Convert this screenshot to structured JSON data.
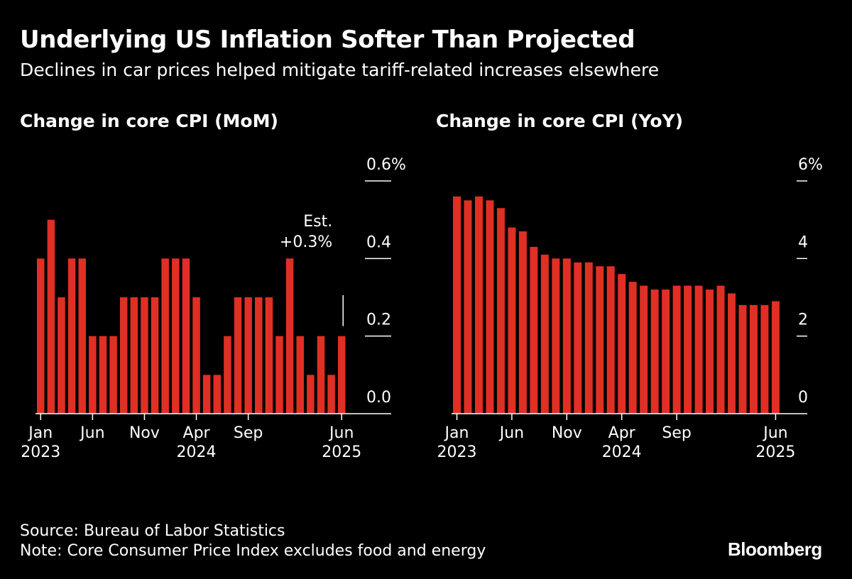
{
  "title": "Underlying US Inflation Softer Than Projected",
  "subtitle": "Declines in car prices helped mitigate tariff-related increases elsewhere",
  "source": "Source: Bureau of Labor Statistics",
  "note": "Note: Core Consumer Price Index excludes food and energy",
  "logo": "Bloomberg",
  "colors": {
    "bar": "#e02f24",
    "background": "#000000",
    "text": "#ffffff"
  },
  "chart_data": [
    {
      "type": "bar",
      "title": "Change in core CPI (MoM)",
      "xlabel": "",
      "ylabel": "",
      "ylim": [
        0,
        0.6
      ],
      "y_ticks": [
        {
          "value": 0.0,
          "label": "0.0"
        },
        {
          "value": 0.2,
          "label": "0.2"
        },
        {
          "value": 0.4,
          "label": "0.4"
        },
        {
          "value": 0.6,
          "label": "0.6%"
        }
      ],
      "x_ticks": [
        {
          "index": 0,
          "label": "Jan",
          "year": "2023"
        },
        {
          "index": 5,
          "label": "Jun",
          "year": ""
        },
        {
          "index": 10,
          "label": "Nov",
          "year": ""
        },
        {
          "index": 15,
          "label": "Apr",
          "year": "2024"
        },
        {
          "index": 20,
          "label": "Sep",
          "year": ""
        },
        {
          "index": 29,
          "label": "Jun",
          "year": "2025"
        }
      ],
      "categories": [
        "Jan 2023",
        "Feb 2023",
        "Mar 2023",
        "Apr 2023",
        "May 2023",
        "Jun 2023",
        "Jul 2023",
        "Aug 2023",
        "Sep 2023",
        "Oct 2023",
        "Nov 2023",
        "Dec 2023",
        "Jan 2024",
        "Feb 2024",
        "Mar 2024",
        "Apr 2024",
        "May 2024",
        "Jun 2024",
        "Jul 2024",
        "Aug 2024",
        "Sep 2024",
        "Oct 2024",
        "Nov 2024",
        "Dec 2024",
        "Jan 2025",
        "Feb 2025",
        "Mar 2025",
        "Apr 2025",
        "May 2025",
        "Jun 2025"
      ],
      "values": [
        0.4,
        0.5,
        0.3,
        0.4,
        0.4,
        0.2,
        0.2,
        0.2,
        0.3,
        0.3,
        0.3,
        0.3,
        0.4,
        0.4,
        0.4,
        0.3,
        0.1,
        0.1,
        0.2,
        0.3,
        0.3,
        0.3,
        0.3,
        0.2,
        0.4,
        0.2,
        0.1,
        0.2,
        0.1,
        0.2
      ],
      "annotation": {
        "line1": "Est.",
        "line2": "+0.3%",
        "value": 0.3,
        "index": 29
      }
    },
    {
      "type": "bar",
      "title": "Change in core CPI (YoY)",
      "xlabel": "",
      "ylabel": "",
      "ylim": [
        0,
        6
      ],
      "y_ticks": [
        {
          "value": 0,
          "label": "0"
        },
        {
          "value": 2,
          "label": "2"
        },
        {
          "value": 4,
          "label": "4"
        },
        {
          "value": 6,
          "label": "6%"
        }
      ],
      "x_ticks": [
        {
          "index": 0,
          "label": "Jan",
          "year": "2023"
        },
        {
          "index": 5,
          "label": "Jun",
          "year": ""
        },
        {
          "index": 10,
          "label": "Nov",
          "year": ""
        },
        {
          "index": 15,
          "label": "Apr",
          "year": "2024"
        },
        {
          "index": 20,
          "label": "Sep",
          "year": ""
        },
        {
          "index": 29,
          "label": "Jun",
          "year": "2025"
        }
      ],
      "categories": [
        "Jan 2023",
        "Feb 2023",
        "Mar 2023",
        "Apr 2023",
        "May 2023",
        "Jun 2023",
        "Jul 2023",
        "Aug 2023",
        "Sep 2023",
        "Oct 2023",
        "Nov 2023",
        "Dec 2023",
        "Jan 2024",
        "Feb 2024",
        "Mar 2024",
        "Apr 2024",
        "May 2024",
        "Jun 2024",
        "Jul 2024",
        "Aug 2024",
        "Sep 2024",
        "Oct 2024",
        "Nov 2024",
        "Dec 2024",
        "Jan 2025",
        "Feb 2025",
        "Mar 2025",
        "Apr 2025",
        "May 2025",
        "Jun 2025"
      ],
      "values": [
        5.6,
        5.5,
        5.6,
        5.5,
        5.3,
        4.8,
        4.7,
        4.3,
        4.1,
        4.0,
        4.0,
        3.9,
        3.9,
        3.8,
        3.8,
        3.6,
        3.4,
        3.3,
        3.2,
        3.2,
        3.3,
        3.3,
        3.3,
        3.2,
        3.3,
        3.1,
        2.8,
        2.8,
        2.8,
        2.9
      ]
    }
  ]
}
